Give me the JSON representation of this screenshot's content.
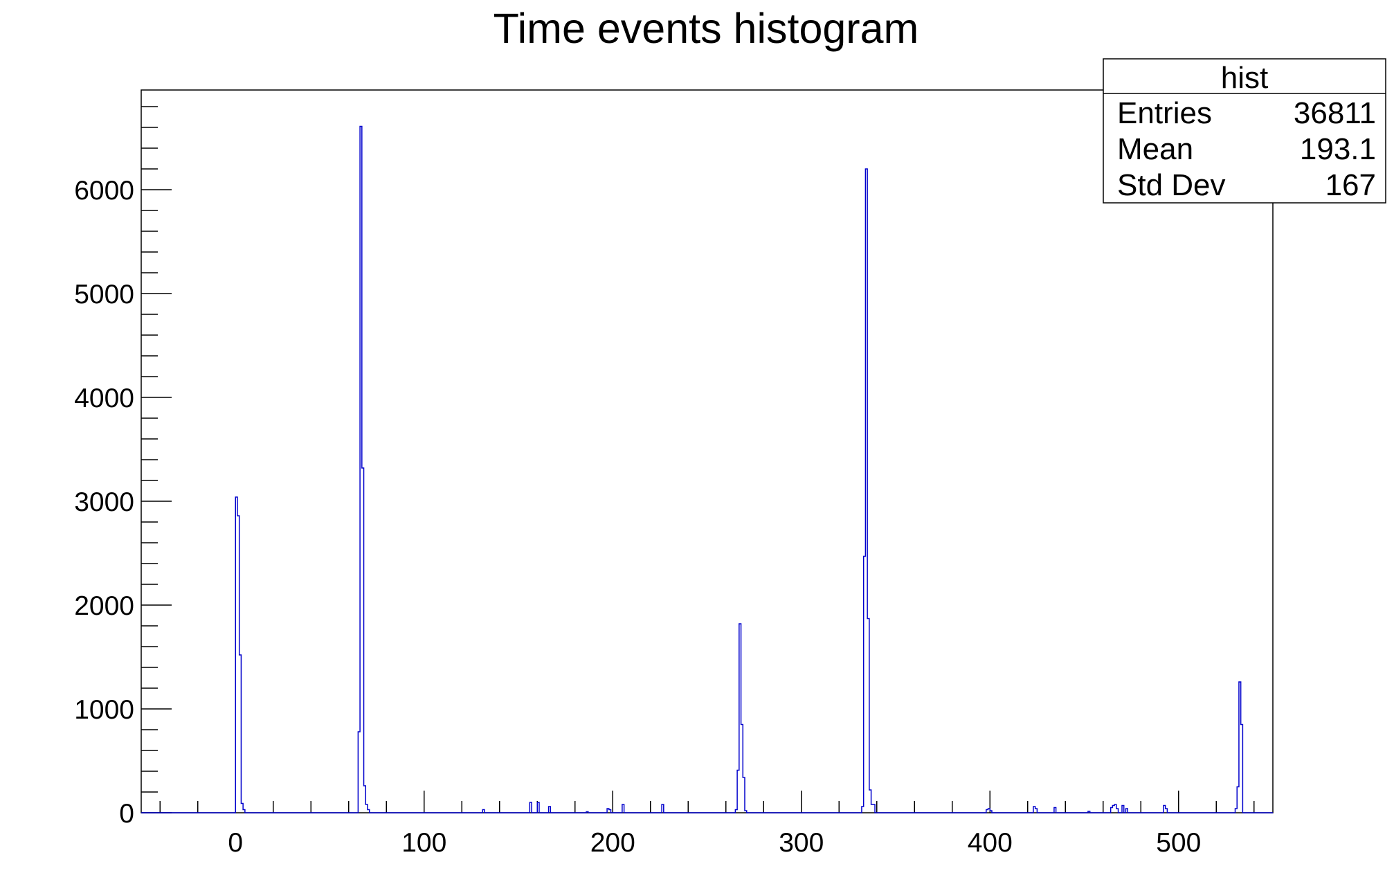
{
  "chart_data": {
    "type": "bar",
    "title": "Time events histogram",
    "xlabel": "",
    "ylabel": "",
    "xlim": [
      -50,
      550
    ],
    "ylim": [
      0,
      6960
    ],
    "x_ticks": [
      0,
      100,
      200,
      300,
      400,
      500
    ],
    "x_tick_labels": [
      "0",
      "100",
      "200",
      "300",
      "400",
      "500"
    ],
    "y_ticks": [
      0,
      1000,
      2000,
      3000,
      4000,
      5000,
      6000
    ],
    "y_tick_labels": [
      "0",
      "1000",
      "2000",
      "3000",
      "4000",
      "5000",
      "6000"
    ],
    "grid": false,
    "line_color": "#0000cc",
    "bin_width": 1,
    "series": [
      {
        "name": "hist",
        "x": [
          0,
          1,
          2,
          3,
          4,
          65,
          66,
          67,
          68,
          69,
          70,
          131,
          156,
          160,
          166,
          186,
          197,
          198,
          205,
          226,
          265,
          266,
          267,
          268,
          269,
          270,
          332,
          333,
          334,
          335,
          336,
          337,
          338,
          398,
          399,
          400,
          423,
          424,
          434,
          452,
          464,
          465,
          466,
          467,
          470,
          472,
          492,
          493,
          530,
          531,
          532,
          533
        ],
        "values": [
          3040,
          2860,
          1520,
          90,
          30,
          780,
          6610,
          3320,
          260,
          80,
          30,
          30,
          100,
          100,
          60,
          10,
          40,
          30,
          80,
          80,
          30,
          410,
          1820,
          850,
          340,
          20,
          60,
          2470,
          6200,
          1870,
          220,
          80,
          80,
          30,
          40,
          20,
          60,
          40,
          50,
          15,
          50,
          70,
          80,
          40,
          70,
          40,
          70,
          40,
          40,
          250,
          1260,
          850
        ]
      }
    ]
  },
  "stats_box": {
    "title": "hist",
    "rows": [
      {
        "label": "Entries",
        "value": "36811"
      },
      {
        "label": "Mean",
        "value": "193.1"
      },
      {
        "label": "Std Dev",
        "value": "167"
      }
    ]
  }
}
